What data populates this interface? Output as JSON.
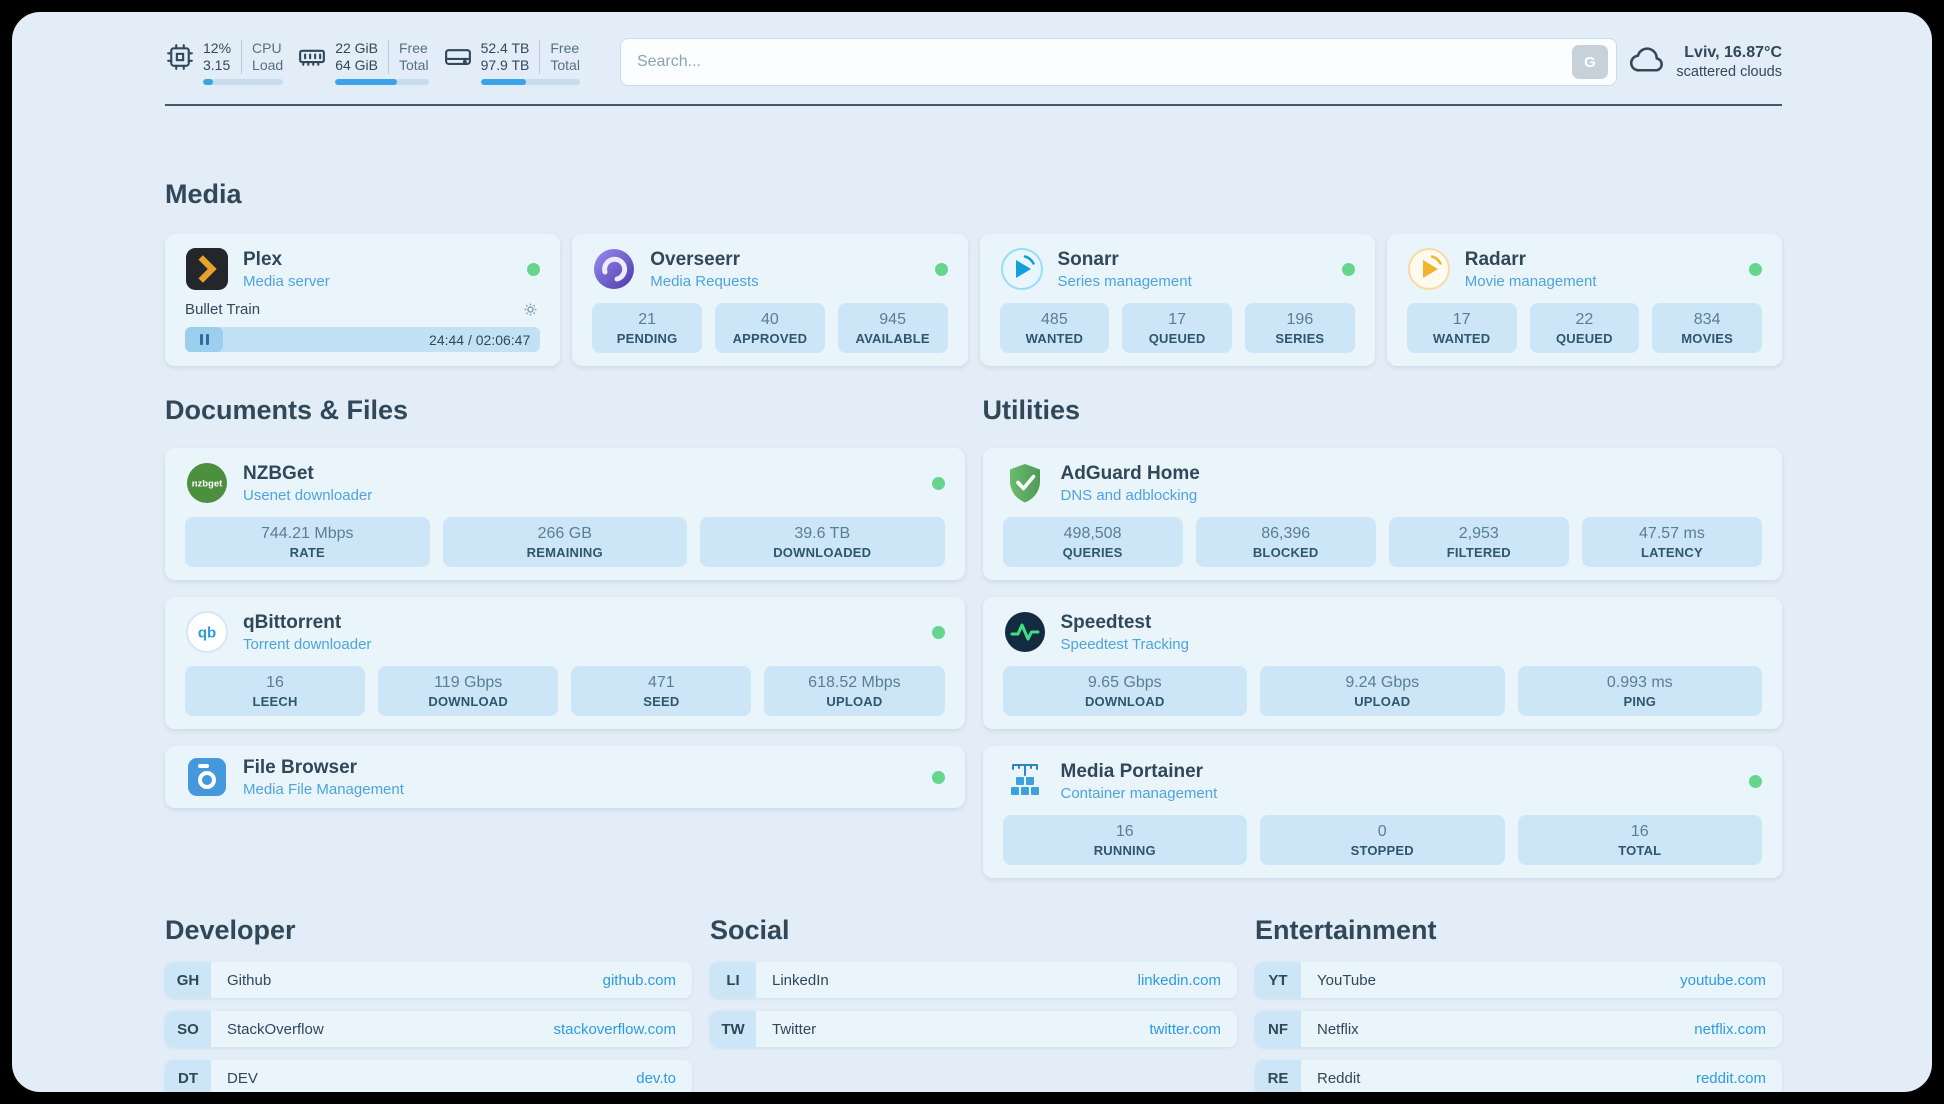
{
  "header": {
    "metrics": [
      {
        "v1": "12%",
        "v2": "3.15",
        "l1": "CPU",
        "l2": "Load",
        "progress": 12
      },
      {
        "v1": "22 GiB",
        "v2": "64 GiB",
        "l1": "Free",
        "l2": "Total",
        "progress": 66
      },
      {
        "v1": "52.4 TB",
        "v2": "97.9 TB",
        "l1": "Free",
        "l2": "Total",
        "progress": 46
      }
    ],
    "search": {
      "placeholder": "Search...",
      "engine_label": "G"
    },
    "weather": {
      "location": "Lviv, 16.87°C",
      "condition": "scattered clouds"
    }
  },
  "media": {
    "title": "Media",
    "plex": {
      "name": "Plex",
      "subtitle": "Media server",
      "now_playing": "Bullet Train",
      "time": "24:44 / 02:06:47"
    },
    "overseerr": {
      "name": "Overseerr",
      "subtitle": "Media Requests",
      "stats": [
        {
          "value": "21",
          "label": "PENDING"
        },
        {
          "value": "40",
          "label": "APPROVED"
        },
        {
          "value": "945",
          "label": "AVAILABLE"
        }
      ]
    },
    "sonarr": {
      "name": "Sonarr",
      "subtitle": "Series management",
      "stats": [
        {
          "value": "485",
          "label": "WANTED"
        },
        {
          "value": "17",
          "label": "QUEUED"
        },
        {
          "value": "196",
          "label": "SERIES"
        }
      ]
    },
    "radarr": {
      "name": "Radarr",
      "subtitle": "Movie management",
      "stats": [
        {
          "value": "17",
          "label": "WANTED"
        },
        {
          "value": "22",
          "label": "QUEUED"
        },
        {
          "value": "834",
          "label": "MOVIES"
        }
      ]
    }
  },
  "documents": {
    "title": "Documents & Files",
    "nzbget": {
      "name": "NZBGet",
      "subtitle": "Usenet downloader",
      "icon_text": "nzbget",
      "stats": [
        {
          "value": "744.21 Mbps",
          "label": "RATE"
        },
        {
          "value": "266 GB",
          "label": "REMAINING"
        },
        {
          "value": "39.6 TB",
          "label": "DOWNLOADED"
        }
      ]
    },
    "qbittorrent": {
      "name": "qBittorrent",
      "subtitle": "Torrent downloader",
      "icon_text": "qb",
      "stats": [
        {
          "value": "16",
          "label": "LEECH"
        },
        {
          "value": "119 Gbps",
          "label": "DOWNLOAD"
        },
        {
          "value": "471",
          "label": "SEED"
        },
        {
          "value": "618.52 Mbps",
          "label": "UPLOAD"
        }
      ]
    },
    "filebrowser": {
      "name": "File Browser",
      "subtitle": "Media File Management"
    }
  },
  "utilities": {
    "title": "Utilities",
    "adguard": {
      "name": "AdGuard Home",
      "subtitle": "DNS and adblocking",
      "stats": [
        {
          "value": "498,508",
          "label": "QUERIES"
        },
        {
          "value": "86,396",
          "label": "BLOCKED"
        },
        {
          "value": "2,953",
          "label": "FILTERED"
        },
        {
          "value": "47.57 ms",
          "label": "LATENCY"
        }
      ]
    },
    "speedtest": {
      "name": "Speedtest",
      "subtitle": "Speedtest Tracking",
      "stats": [
        {
          "value": "9.65 Gbps",
          "label": "DOWNLOAD"
        },
        {
          "value": "9.24 Gbps",
          "label": "UPLOAD"
        },
        {
          "value": "0.993 ms",
          "label": "PING"
        }
      ]
    },
    "portainer": {
      "name": "Media Portainer",
      "subtitle": "Container management",
      "stats": [
        {
          "value": "16",
          "label": "RUNNING"
        },
        {
          "value": "0",
          "label": "STOPPED"
        },
        {
          "value": "16",
          "label": "TOTAL"
        }
      ]
    }
  },
  "bookmarks": [
    {
      "title": "Developer",
      "items": [
        {
          "abbr": "GH",
          "name": "Github",
          "url": "github.com"
        },
        {
          "abbr": "SO",
          "name": "StackOverflow",
          "url": "stackoverflow.com"
        },
        {
          "abbr": "DT",
          "name": "DEV",
          "url": "dev.to"
        }
      ]
    },
    {
      "title": "Social",
      "items": [
        {
          "abbr": "LI",
          "name": "LinkedIn",
          "url": "linkedin.com"
        },
        {
          "abbr": "TW",
          "name": "Twitter",
          "url": "twitter.com"
        }
      ]
    },
    {
      "title": "Entertainment",
      "items": [
        {
          "abbr": "YT",
          "name": "YouTube",
          "url": "youtube.com"
        },
        {
          "abbr": "NF",
          "name": "Netflix",
          "url": "netflix.com"
        },
        {
          "abbr": "RE",
          "name": "Reddit",
          "url": "reddit.com"
        }
      ]
    }
  ],
  "colors": {
    "accent": "#3ba3ea",
    "link": "#2e9be0",
    "status_online": "#66d68f",
    "background": "#e2edf7"
  }
}
